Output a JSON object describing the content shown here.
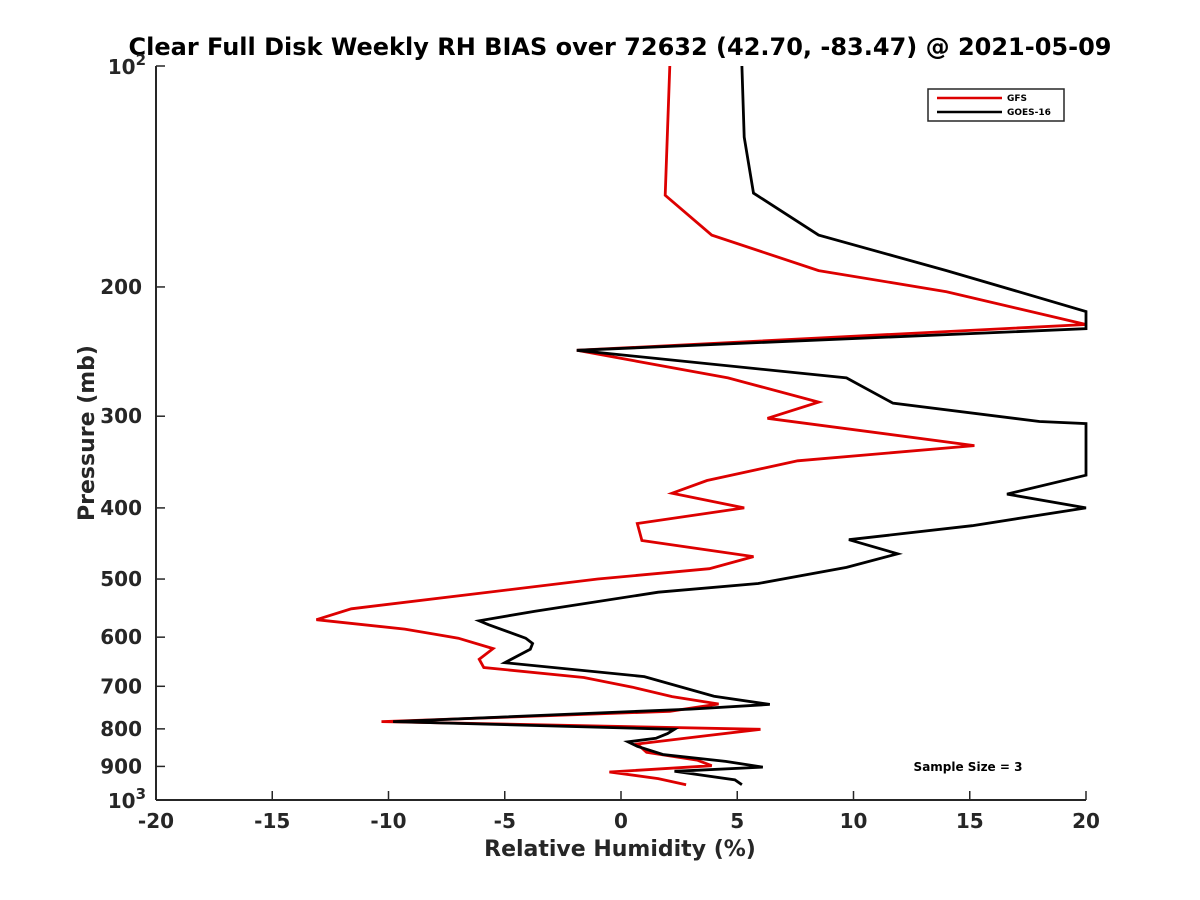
{
  "chart_data": {
    "type": "line",
    "title": "Clear Full Disk Weekly RH BIAS over 72632 (42.70, -83.47) @ 2021-05-09",
    "xlabel": "Relative Humidity (%)",
    "ylabel": "Pressure (mb)",
    "xlim": [
      -20,
      20
    ],
    "ylim": [
      100,
      1000
    ],
    "y_scale": "log",
    "y_reversed": true,
    "grid": false,
    "legend_position": "top-right",
    "x_ticks": [
      -20,
      -15,
      -10,
      -5,
      0,
      5,
      10,
      15,
      20
    ],
    "x_tick_labels": [
      "-20",
      "-15",
      "-10",
      "-5",
      "0",
      "5",
      "10",
      "15",
      "20"
    ],
    "y_ticks": [
      100,
      200,
      300,
      400,
      500,
      600,
      700,
      800,
      900,
      1000
    ],
    "y_tick_labels": [
      {
        "base": "10",
        "exp": "2"
      },
      {
        "base": "200",
        "exp": ""
      },
      {
        "base": "300",
        "exp": ""
      },
      {
        "base": "400",
        "exp": ""
      },
      {
        "base": "500",
        "exp": ""
      },
      {
        "base": "600",
        "exp": ""
      },
      {
        "base": "700",
        "exp": ""
      },
      {
        "base": "800",
        "exp": ""
      },
      {
        "base": "900",
        "exp": ""
      },
      {
        "base": "10",
        "exp": "3"
      }
    ],
    "annotation": "Sample Size = 3",
    "series": [
      {
        "name": "GFS",
        "color": "#dd0000",
        "points": [
          {
            "x": 2.1,
            "p": 100
          },
          {
            "x": 1.9,
            "p": 150
          },
          {
            "x": 3.9,
            "p": 170
          },
          {
            "x": 8.5,
            "p": 190
          },
          {
            "x": 14.0,
            "p": 203
          },
          {
            "x": 20.0,
            "p": 225
          },
          {
            "x": -1.9,
            "p": 244
          },
          {
            "x": 4.6,
            "p": 266
          },
          {
            "x": 8.5,
            "p": 287
          },
          {
            "x": 6.3,
            "p": 302
          },
          {
            "x": 15.2,
            "p": 329
          },
          {
            "x": 7.6,
            "p": 345
          },
          {
            "x": 3.7,
            "p": 367
          },
          {
            "x": 2.2,
            "p": 382
          },
          {
            "x": 5.3,
            "p": 400
          },
          {
            "x": 0.7,
            "p": 420
          },
          {
            "x": 0.9,
            "p": 443
          },
          {
            "x": 5.7,
            "p": 466
          },
          {
            "x": 3.8,
            "p": 484
          },
          {
            "x": -1.0,
            "p": 500
          },
          {
            "x": -11.6,
            "p": 549
          },
          {
            "x": -13.1,
            "p": 568
          },
          {
            "x": -9.3,
            "p": 585
          },
          {
            "x": -7.0,
            "p": 602
          },
          {
            "x": -5.5,
            "p": 622
          },
          {
            "x": -6.1,
            "p": 643
          },
          {
            "x": -5.9,
            "p": 660
          },
          {
            "x": -1.6,
            "p": 681
          },
          {
            "x": 0.5,
            "p": 702
          },
          {
            "x": 2.2,
            "p": 723
          },
          {
            "x": 4.2,
            "p": 740
          },
          {
            "x": 2.1,
            "p": 757
          },
          {
            "x": -10.3,
            "p": 782
          },
          {
            "x": 6.0,
            "p": 801
          },
          {
            "x": 3.7,
            "p": 817
          },
          {
            "x": 0.7,
            "p": 839
          },
          {
            "x": 1.1,
            "p": 861
          },
          {
            "x": 3.3,
            "p": 883
          },
          {
            "x": 3.9,
            "p": 898
          },
          {
            "x": -0.5,
            "p": 916
          },
          {
            "x": 1.6,
            "p": 935
          },
          {
            "x": 2.8,
            "p": 953
          }
        ]
      },
      {
        "name": "GOES-16",
        "color": "#000000",
        "points": [
          {
            "x": 5.2,
            "p": 100
          },
          {
            "x": 5.3,
            "p": 125
          },
          {
            "x": 5.7,
            "p": 149
          },
          {
            "x": 8.5,
            "p": 170
          },
          {
            "x": 14.0,
            "p": 190
          },
          {
            "x": 20.0,
            "p": 216
          },
          {
            "x": 20.0,
            "p": 228
          },
          {
            "x": -1.9,
            "p": 244
          },
          {
            "x": 9.7,
            "p": 266
          },
          {
            "x": 11.7,
            "p": 288
          },
          {
            "x": 18.0,
            "p": 305
          },
          {
            "x": 20.0,
            "p": 307
          },
          {
            "x": 20.0,
            "p": 361
          },
          {
            "x": 16.6,
            "p": 383
          },
          {
            "x": 20.0,
            "p": 400
          },
          {
            "x": 15.1,
            "p": 423
          },
          {
            "x": 9.8,
            "p": 442
          },
          {
            "x": 11.9,
            "p": 462
          },
          {
            "x": 9.7,
            "p": 482
          },
          {
            "x": 5.9,
            "p": 507
          },
          {
            "x": 1.6,
            "p": 521
          },
          {
            "x": -3.7,
            "p": 553
          },
          {
            "x": -6.1,
            "p": 570
          },
          {
            "x": -5.7,
            "p": 577
          },
          {
            "x": -4.1,
            "p": 602
          },
          {
            "x": -3.8,
            "p": 612
          },
          {
            "x": -3.9,
            "p": 623
          },
          {
            "x": -5.0,
            "p": 650
          },
          {
            "x": 1.0,
            "p": 679
          },
          {
            "x": 4.0,
            "p": 722
          },
          {
            "x": 6.4,
            "p": 741
          },
          {
            "x": 3.0,
            "p": 752
          },
          {
            "x": -9.8,
            "p": 782
          },
          {
            "x": 2.3,
            "p": 801
          },
          {
            "x": 2.0,
            "p": 812
          },
          {
            "x": 1.5,
            "p": 824
          },
          {
            "x": 0.3,
            "p": 833
          },
          {
            "x": 0.7,
            "p": 845
          },
          {
            "x": 1.8,
            "p": 867
          },
          {
            "x": 4.5,
            "p": 886
          },
          {
            "x": 6.1,
            "p": 902
          },
          {
            "x": 2.3,
            "p": 914
          },
          {
            "x": 4.9,
            "p": 939
          },
          {
            "x": 5.2,
            "p": 953
          }
        ]
      }
    ]
  }
}
